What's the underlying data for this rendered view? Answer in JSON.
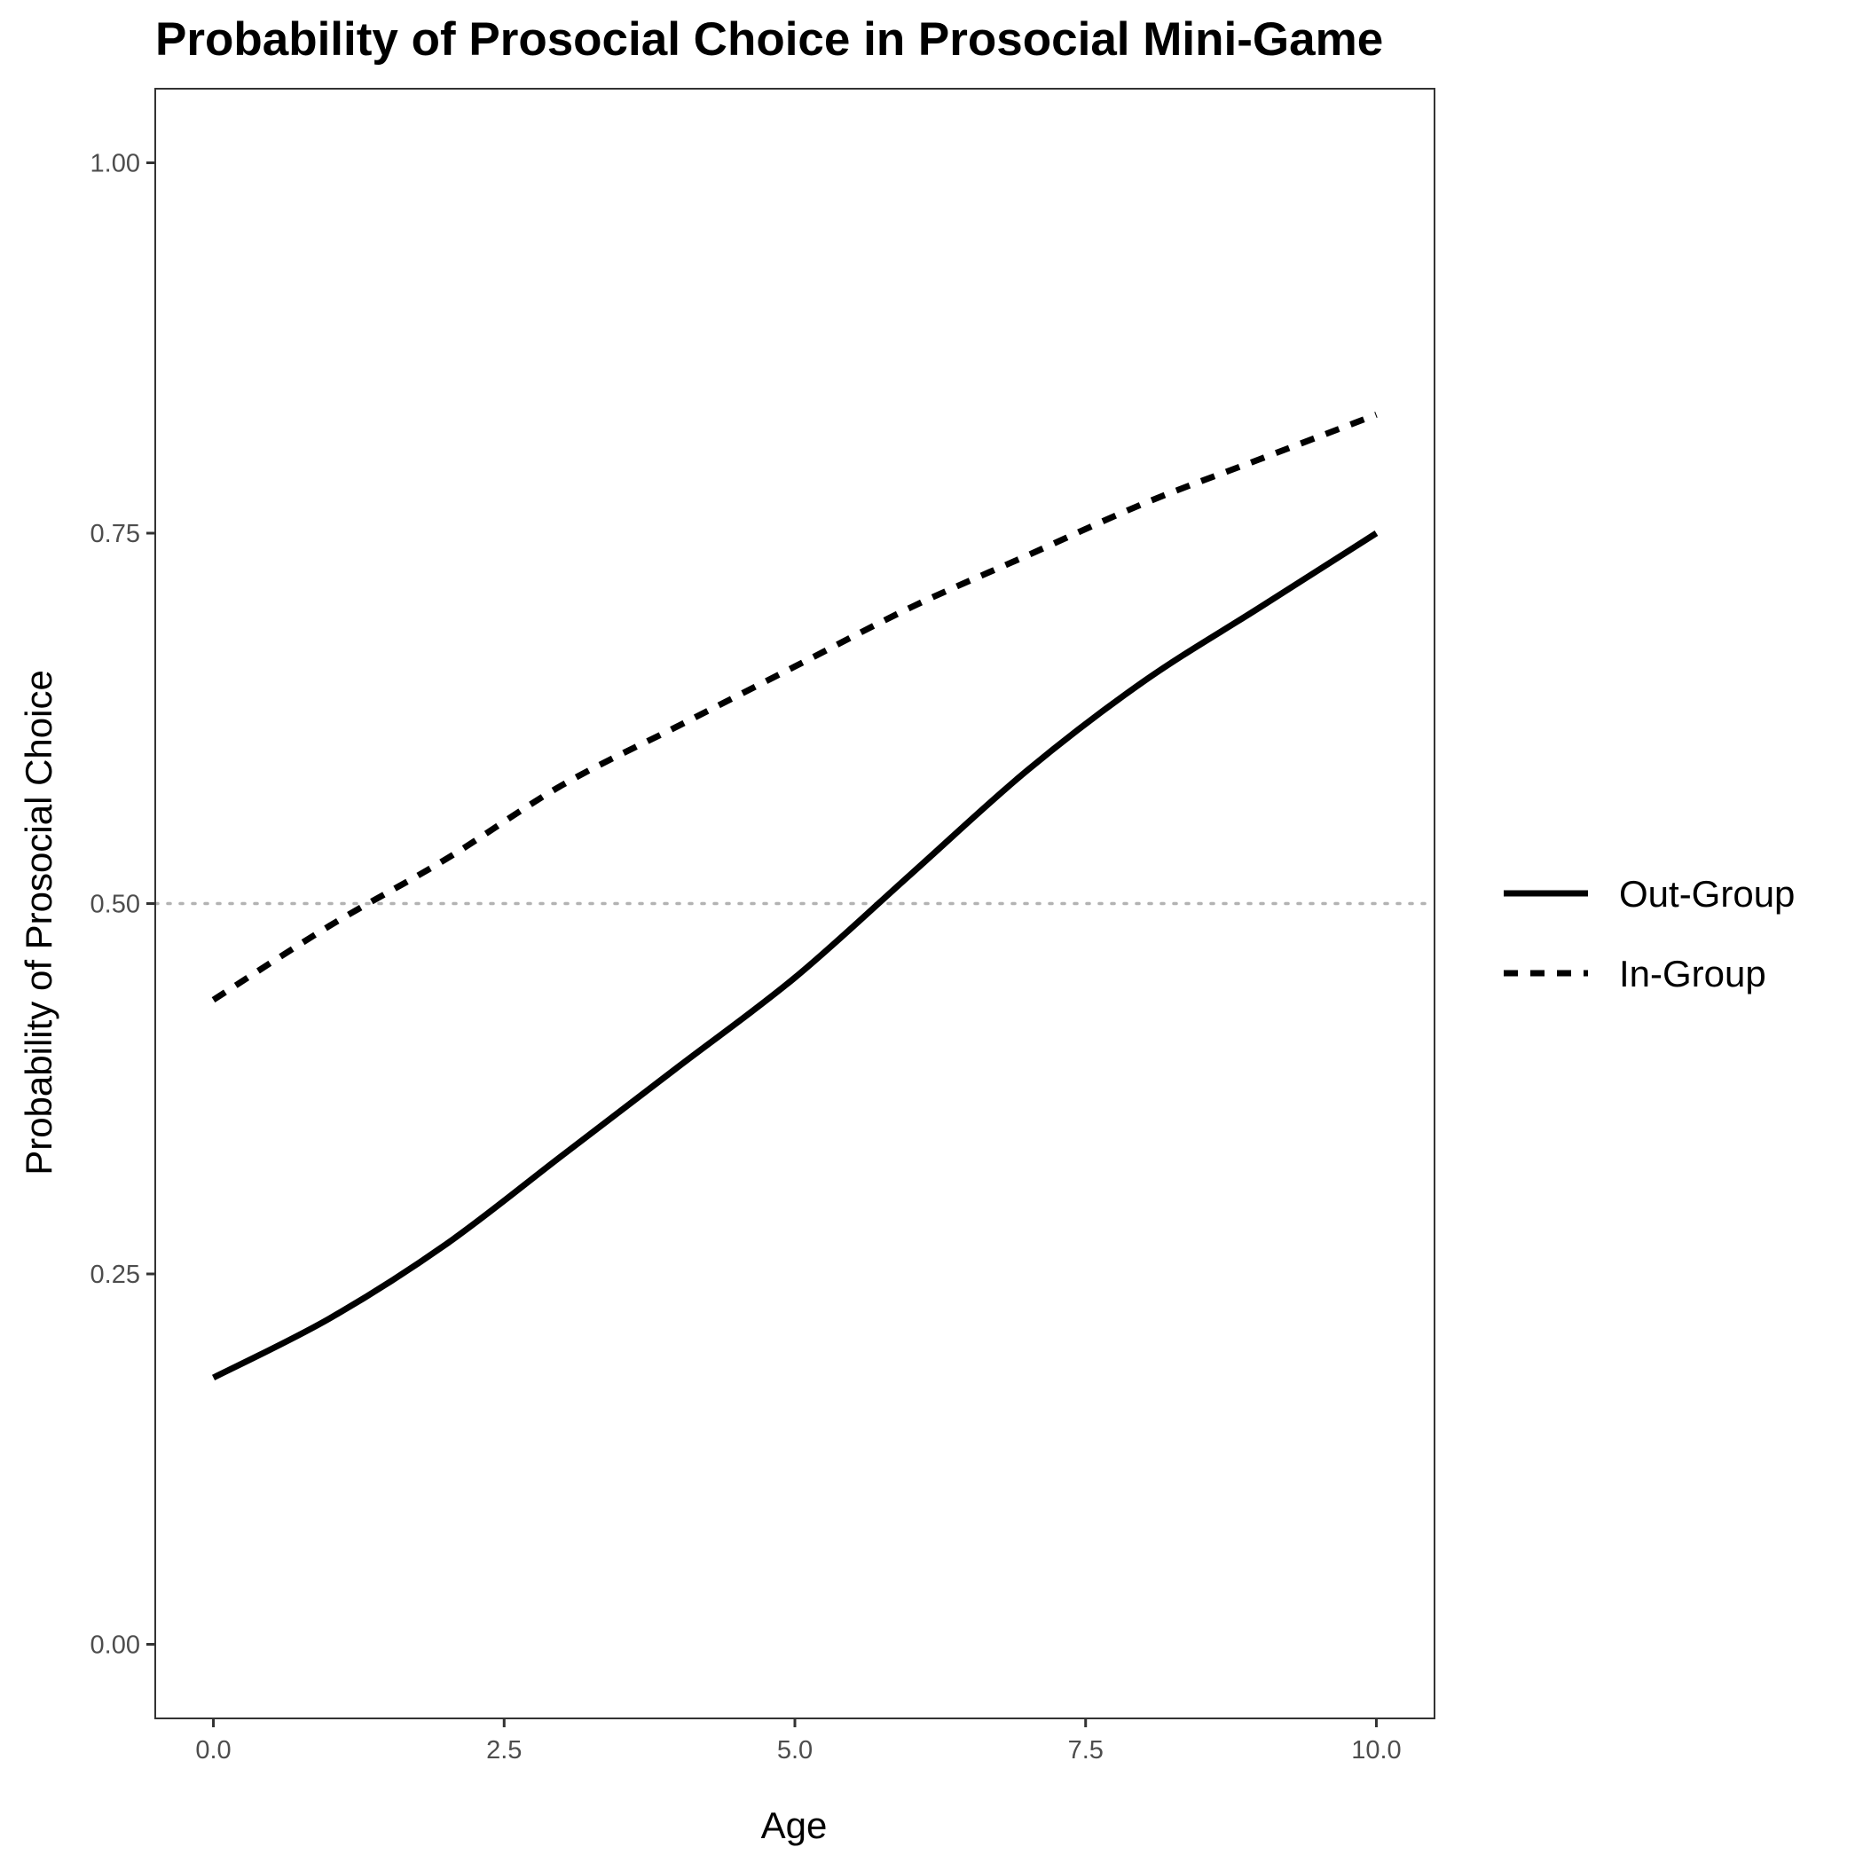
{
  "chart_data": {
    "type": "line",
    "title": "Probability of Prosocial Choice in Prosocial Mini-Game",
    "xlabel": "Age",
    "ylabel": "Probability of Prosocial Choice",
    "xlim": [
      -0.5,
      10.5
    ],
    "ylim": [
      -0.05,
      1.05
    ],
    "x_ticks": [
      0.0,
      2.5,
      5.0,
      7.5,
      10.0
    ],
    "x_tick_labels": [
      "0.0",
      "2.5",
      "5.0",
      "7.5",
      "10.0"
    ],
    "y_ticks": [
      0.0,
      0.25,
      0.5,
      0.75,
      1.0
    ],
    "y_tick_labels": [
      "0.00",
      "0.25",
      "0.50",
      "0.75",
      "1.00"
    ],
    "grid": false,
    "reference_line": {
      "y": 0.5,
      "style": "dotted",
      "color": "#b3b3b3"
    },
    "legend_position": "right",
    "series": [
      {
        "name": "Out-Group",
        "line_style": "solid",
        "color": "#000000",
        "x": [
          0,
          1,
          2,
          3,
          4,
          5,
          6,
          7,
          8,
          9,
          10
        ],
        "y": [
          0.18,
          0.22,
          0.27,
          0.33,
          0.39,
          0.45,
          0.52,
          0.59,
          0.65,
          0.7,
          0.75
        ]
      },
      {
        "name": "In-Group",
        "line_style": "dashed",
        "color": "#000000",
        "x": [
          0,
          1,
          2,
          3,
          4,
          5,
          6,
          7,
          8,
          9,
          10
        ],
        "y": [
          0.435,
          0.485,
          0.53,
          0.58,
          0.62,
          0.66,
          0.7,
          0.735,
          0.77,
          0.8,
          0.83
        ]
      }
    ]
  }
}
